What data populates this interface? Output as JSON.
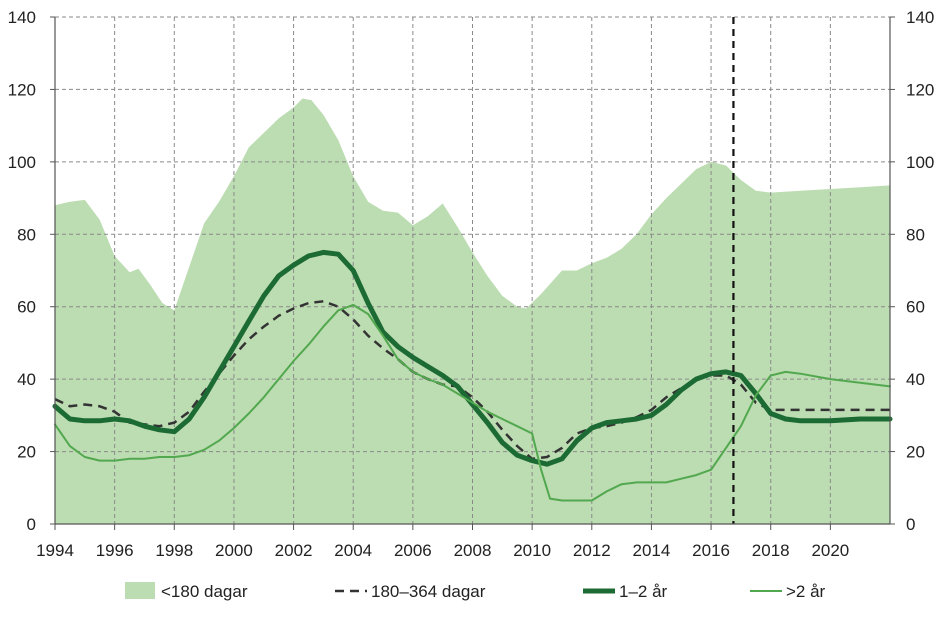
{
  "chart_data": {
    "type": "area+line",
    "x_ticks": [
      "1994",
      "1996",
      "1998",
      "2000",
      "2002",
      "2004",
      "2006",
      "2008",
      "2010",
      "2012",
      "2014",
      "2016",
      "2018",
      "2020"
    ],
    "x_range": [
      1994,
      2022
    ],
    "y_ticks": [
      "0",
      "20",
      "40",
      "60",
      "80",
      "100",
      "120",
      "140"
    ],
    "ylim": [
      0,
      140
    ],
    "grid": true,
    "vline_x": 2016.75,
    "legend_position": "bottom",
    "series": [
      {
        "name": "<180 dagar",
        "kind": "area",
        "color": "#bcdcb2",
        "points": [
          [
            1994,
            88
          ],
          [
            1994.5,
            89
          ],
          [
            1995,
            89.5
          ],
          [
            1995.5,
            84
          ],
          [
            1996,
            74
          ],
          [
            1996.5,
            69.5
          ],
          [
            1996.8,
            70.5
          ],
          [
            1997.2,
            66
          ],
          [
            1997.6,
            61
          ],
          [
            1998,
            59
          ],
          [
            1998.5,
            71
          ],
          [
            1999,
            83
          ],
          [
            1999.5,
            89
          ],
          [
            2000,
            96
          ],
          [
            2000.5,
            104
          ],
          [
            2001,
            108
          ],
          [
            2001.5,
            112
          ],
          [
            2002,
            115
          ],
          [
            2002.3,
            117.5
          ],
          [
            2002.6,
            117
          ],
          [
            2003,
            113
          ],
          [
            2003.5,
            106
          ],
          [
            2004,
            96
          ],
          [
            2004.5,
            89
          ],
          [
            2005,
            86.5
          ],
          [
            2005.5,
            86
          ],
          [
            2006,
            82.5
          ],
          [
            2006.5,
            85
          ],
          [
            2007,
            88.5
          ],
          [
            2007.5,
            82
          ],
          [
            2008,
            75
          ],
          [
            2008.5,
            68.5
          ],
          [
            2009,
            63
          ],
          [
            2009.5,
            60
          ],
          [
            2009.8,
            59.5
          ],
          [
            2010.3,
            63.5
          ],
          [
            2011,
            70
          ],
          [
            2011.5,
            70
          ],
          [
            2012,
            72
          ],
          [
            2012.5,
            73.5
          ],
          [
            2013,
            76
          ],
          [
            2013.5,
            80
          ],
          [
            2014,
            85.5
          ],
          [
            2014.5,
            90
          ],
          [
            2015,
            94
          ],
          [
            2015.5,
            98
          ],
          [
            2016,
            100
          ],
          [
            2016.5,
            99
          ],
          [
            2017,
            95
          ],
          [
            2017.5,
            92
          ],
          [
            2018,
            91.5
          ],
          [
            2019,
            92
          ],
          [
            2020,
            92.5
          ],
          [
            2021,
            93
          ],
          [
            2022,
            93.5
          ]
        ]
      },
      {
        "name": "180–364 dagar",
        "kind": "dashed-line",
        "color": "#333333",
        "points": [
          [
            1994,
            34.5
          ],
          [
            1994.5,
            32.5
          ],
          [
            1995,
            33
          ],
          [
            1995.5,
            32.5
          ],
          [
            1996,
            31
          ],
          [
            1996.5,
            28
          ],
          [
            1997,
            27.5
          ],
          [
            1997.5,
            27
          ],
          [
            1998,
            28
          ],
          [
            1998.5,
            31
          ],
          [
            1999,
            36.5
          ],
          [
            1999.5,
            41.5
          ],
          [
            2000,
            46.5
          ],
          [
            2000.5,
            51
          ],
          [
            2001,
            54.5
          ],
          [
            2001.5,
            57.5
          ],
          [
            2002,
            59.5
          ],
          [
            2002.5,
            61
          ],
          [
            2003,
            61.5
          ],
          [
            2003.5,
            60
          ],
          [
            2004,
            56.5
          ],
          [
            2004.5,
            52
          ],
          [
            2005,
            48.5
          ],
          [
            2005.5,
            45.5
          ],
          [
            2006,
            42
          ],
          [
            2006.5,
            40
          ],
          [
            2007,
            38.5
          ],
          [
            2007.5,
            38
          ],
          [
            2008,
            35
          ],
          [
            2008.5,
            31
          ],
          [
            2009,
            26
          ],
          [
            2009.5,
            21.5
          ],
          [
            2010,
            18
          ],
          [
            2010.5,
            18.5
          ],
          [
            2011,
            21
          ],
          [
            2011.5,
            25
          ],
          [
            2012,
            26.5
          ],
          [
            2012.5,
            27
          ],
          [
            2013,
            28
          ],
          [
            2013.5,
            29.5
          ],
          [
            2014,
            31.5
          ],
          [
            2014.5,
            35
          ],
          [
            2015,
            37.5
          ],
          [
            2015.5,
            40
          ],
          [
            2016,
            41
          ],
          [
            2016.5,
            41
          ],
          [
            2017,
            38.5
          ],
          [
            2017.5,
            33.5
          ],
          [
            2018,
            31.5
          ],
          [
            2018.5,
            31.5
          ],
          [
            2019,
            31.5
          ],
          [
            2020,
            31.5
          ],
          [
            2021,
            31.5
          ],
          [
            2022,
            31.5
          ]
        ]
      },
      {
        "name": "1–2 år",
        "kind": "thick-line",
        "color": "#1d6b34",
        "points": [
          [
            1994,
            32.5
          ],
          [
            1994.5,
            29
          ],
          [
            1995,
            28.5
          ],
          [
            1995.5,
            28.5
          ],
          [
            1996,
            29
          ],
          [
            1996.5,
            28.5
          ],
          [
            1997,
            27
          ],
          [
            1997.5,
            26
          ],
          [
            1998,
            25.5
          ],
          [
            1998.5,
            29
          ],
          [
            1999,
            35
          ],
          [
            1999.5,
            42
          ],
          [
            2000,
            49
          ],
          [
            2000.5,
            56
          ],
          [
            2001,
            63
          ],
          [
            2001.5,
            68.5
          ],
          [
            2002,
            71.5
          ],
          [
            2002.5,
            74
          ],
          [
            2003,
            75
          ],
          [
            2003.5,
            74.5
          ],
          [
            2004,
            70
          ],
          [
            2004.5,
            61
          ],
          [
            2005,
            53
          ],
          [
            2005.5,
            49
          ],
          [
            2006,
            46
          ],
          [
            2006.5,
            43.5
          ],
          [
            2007,
            41
          ],
          [
            2007.5,
            38
          ],
          [
            2008,
            33
          ],
          [
            2008.5,
            28
          ],
          [
            2009,
            22.5
          ],
          [
            2009.5,
            19
          ],
          [
            2010,
            17.5
          ],
          [
            2010.5,
            16.5
          ],
          [
            2011,
            18
          ],
          [
            2011.5,
            23
          ],
          [
            2012,
            26.5
          ],
          [
            2012.5,
            28
          ],
          [
            2013,
            28.5
          ],
          [
            2013.5,
            29
          ],
          [
            2014,
            30
          ],
          [
            2014.5,
            33
          ],
          [
            2015,
            37
          ],
          [
            2015.5,
            40
          ],
          [
            2016,
            41.5
          ],
          [
            2016.5,
            42
          ],
          [
            2017,
            41
          ],
          [
            2017.5,
            36
          ],
          [
            2018,
            30.5
          ],
          [
            2018.5,
            29
          ],
          [
            2019,
            28.5
          ],
          [
            2020,
            28.5
          ],
          [
            2021,
            29
          ],
          [
            2022,
            29
          ]
        ]
      },
      {
        "name": ">2 år",
        "kind": "thin-line",
        "color": "#52a84e",
        "points": [
          [
            1994,
            27.5
          ],
          [
            1994.5,
            21.5
          ],
          [
            1995,
            18.5
          ],
          [
            1995.5,
            17.5
          ],
          [
            1996,
            17.5
          ],
          [
            1996.5,
            18
          ],
          [
            1997,
            18
          ],
          [
            1997.5,
            18.5
          ],
          [
            1998,
            18.5
          ],
          [
            1998.5,
            19
          ],
          [
            1999,
            20.5
          ],
          [
            1999.5,
            23
          ],
          [
            2000,
            26.5
          ],
          [
            2000.5,
            30.5
          ],
          [
            2001,
            35
          ],
          [
            2001.5,
            40
          ],
          [
            2002,
            45
          ],
          [
            2002.5,
            49.5
          ],
          [
            2003,
            54.5
          ],
          [
            2003.5,
            59
          ],
          [
            2004,
            60.5
          ],
          [
            2004.5,
            58
          ],
          [
            2005,
            52
          ],
          [
            2005.5,
            45.5
          ],
          [
            2006,
            42
          ],
          [
            2006.5,
            40
          ],
          [
            2007,
            38.5
          ],
          [
            2007.5,
            36
          ],
          [
            2008,
            33.5
          ],
          [
            2008.5,
            31
          ],
          [
            2009,
            29
          ],
          [
            2009.5,
            27
          ],
          [
            2010,
            25
          ],
          [
            2010.3,
            15
          ],
          [
            2010.6,
            7
          ],
          [
            2011,
            6.5
          ],
          [
            2011.5,
            6.5
          ],
          [
            2012,
            6.5
          ],
          [
            2012.5,
            9
          ],
          [
            2013,
            11
          ],
          [
            2013.5,
            11.5
          ],
          [
            2014,
            11.5
          ],
          [
            2014.5,
            11.5
          ],
          [
            2015,
            12.5
          ],
          [
            2015.5,
            13.5
          ],
          [
            2016,
            15
          ],
          [
            2016.5,
            21
          ],
          [
            2017,
            27
          ],
          [
            2017.5,
            35.5
          ],
          [
            2018,
            41
          ],
          [
            2018.5,
            42
          ],
          [
            2019,
            41.5
          ],
          [
            2020,
            40
          ],
          [
            2021,
            39
          ],
          [
            2022,
            38
          ]
        ]
      }
    ]
  }
}
